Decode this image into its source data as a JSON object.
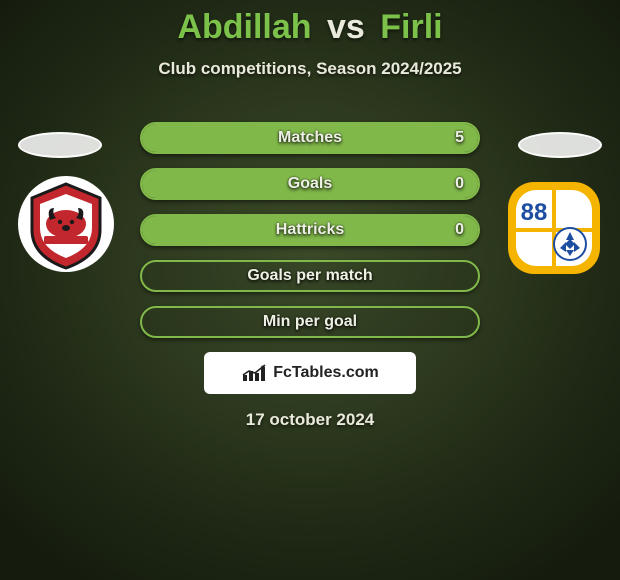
{
  "title": {
    "player1": "Abdillah",
    "vs": "vs",
    "player2": "Firli",
    "player1_color": "#7cc24a",
    "player2_color": "#7cc24a",
    "vs_color": "#e9e9dc"
  },
  "subtitle": "Club competitions, Season 2024/2025",
  "colors": {
    "bar_border": "#81b84a",
    "bar_fill": "#81b84a",
    "text_light": "#eef0e6",
    "background_center": "#3a4a28",
    "background_edge": "#151c0e"
  },
  "bars": [
    {
      "label": "Matches",
      "value": "5",
      "fill_pct": 100,
      "show_value": true
    },
    {
      "label": "Goals",
      "value": "0",
      "fill_pct": 100,
      "show_value": true
    },
    {
      "label": "Hattricks",
      "value": "0",
      "fill_pct": 100,
      "show_value": true
    },
    {
      "label": "Goals per match",
      "value": "",
      "fill_pct": 0,
      "show_value": false
    },
    {
      "label": "Min per goal",
      "value": "",
      "fill_pct": 0,
      "show_value": false
    }
  ],
  "brand": "FcTables.com",
  "date": "17 october 2024",
  "left_logo": {
    "name": "madura-united-logo",
    "bg": "#ffffff",
    "shape": "circle",
    "accent1": "#c1272d",
    "accent2": "#1a1a1a"
  },
  "right_logo": {
    "name": "barito-putera-logo",
    "bg": "#ffffff",
    "shape": "rounded-square",
    "accent1": "#f5b400",
    "accent2": "#1e4ea1",
    "number": "88"
  }
}
